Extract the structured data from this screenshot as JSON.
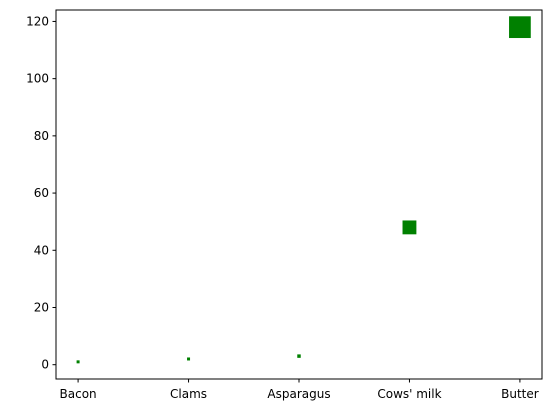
{
  "chart_data": {
    "type": "scatter",
    "categories": [
      "Bacon",
      "Clams",
      "Asparagus",
      "Cows' milk",
      "Butter"
    ],
    "values": [
      1,
      2,
      3,
      48,
      118
    ],
    "title": "",
    "xlabel": "",
    "ylabel": "",
    "ylim": [
      -5,
      124
    ],
    "yticks": [
      0,
      20,
      40,
      60,
      80,
      100,
      120
    ],
    "marker": "square",
    "marker_size_scales_with_value": true,
    "color": "#008000",
    "grid": false,
    "legend": "none"
  }
}
